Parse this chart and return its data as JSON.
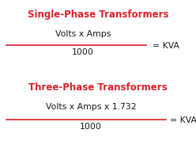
{
  "bg_color": "#ffffff",
  "title1": "Single-Phase Transformers",
  "title1_color": "#e0202a",
  "numerator1": "Volts x Amps",
  "denominator1": "1000",
  "result1": "= KVA",
  "title2": "Three-Phase Transformers",
  "title2_color": "#e0202a",
  "numerator2": "Volts x Amps x 1.732",
  "denominator2": "1000",
  "result2": "= KVA",
  "text_color": "#1a1a1a",
  "line_color": "#e0202a",
  "title_fontsize": 8.5,
  "formula_fontsize": 7.8,
  "result_fontsize": 7.8
}
